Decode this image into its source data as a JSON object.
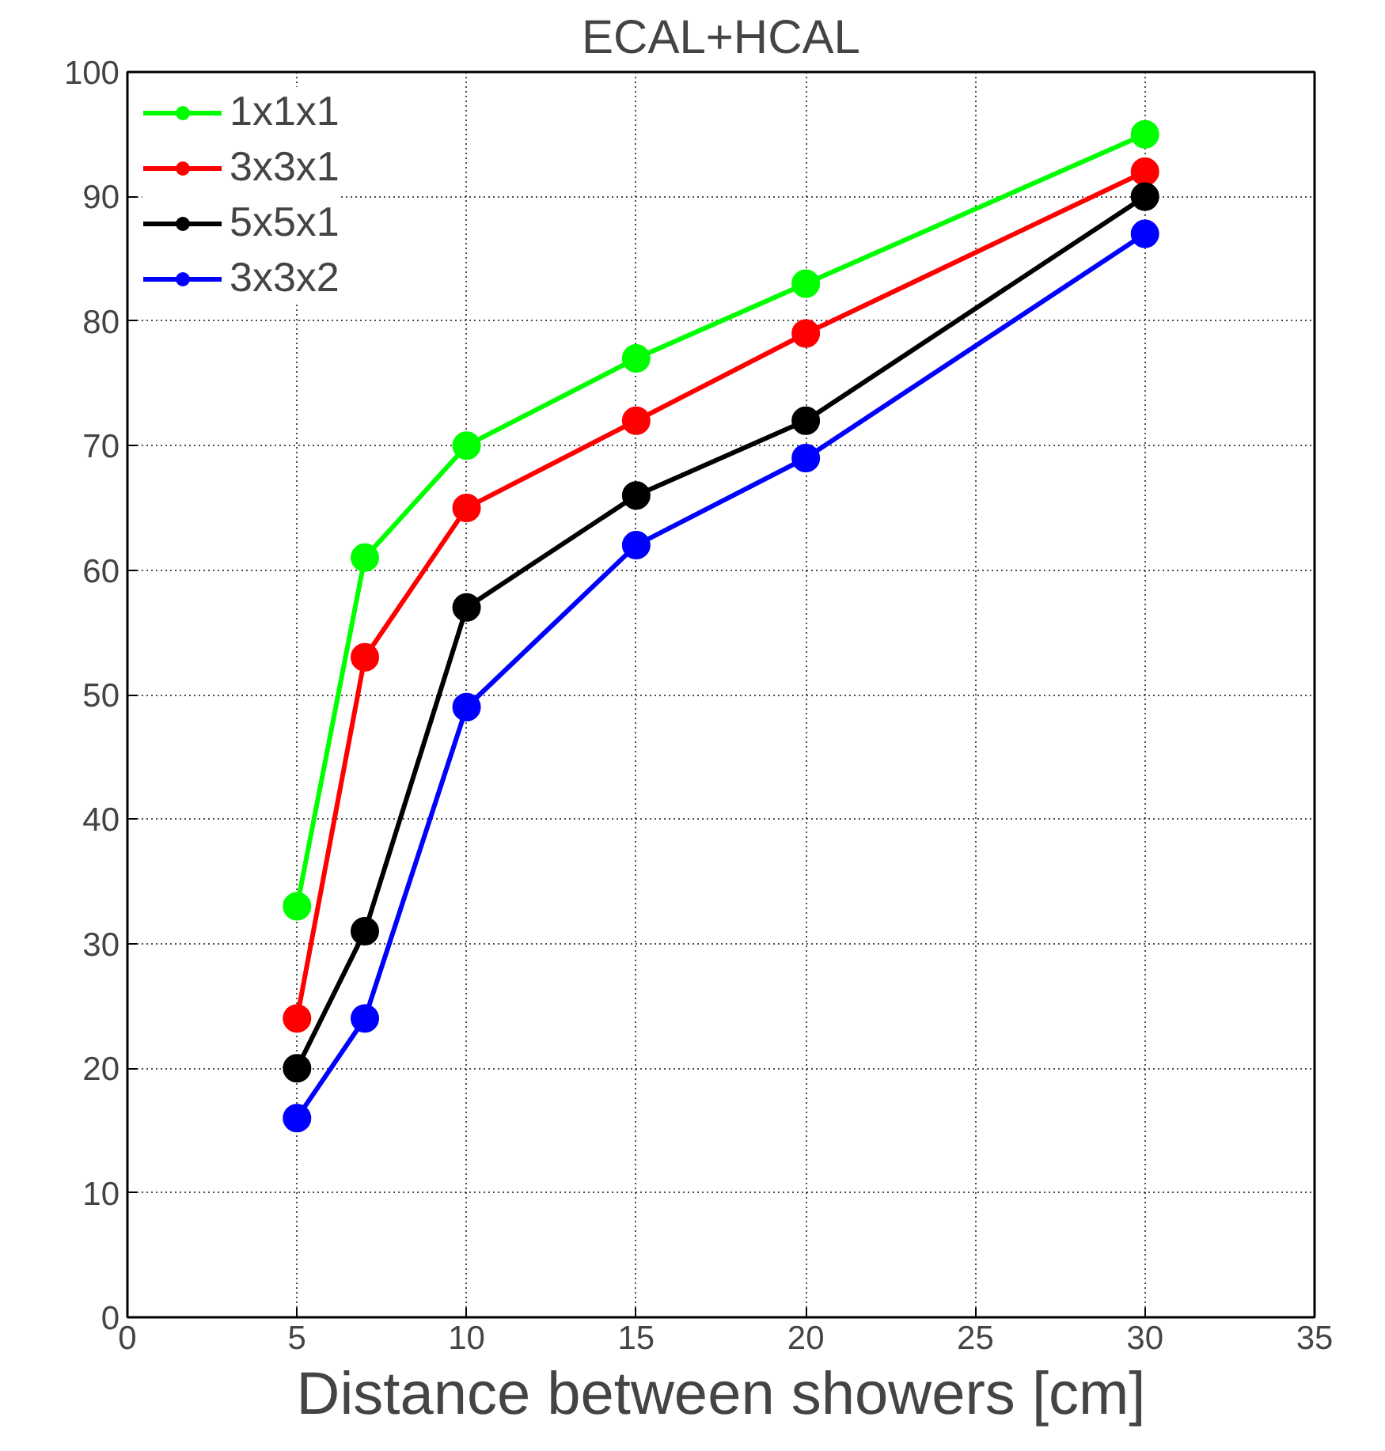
{
  "chart_data": {
    "type": "line",
    "title": "ECAL+HCAL",
    "xlabel": "Distance between showers [cm]",
    "x": [
      5,
      7,
      10,
      15,
      20,
      30
    ],
    "series": [
      {
        "name": "1x1x1",
        "color": "#00ff00",
        "values": [
          33,
          61,
          70,
          77,
          83,
          95
        ]
      },
      {
        "name": "3x3x1",
        "color": "#ff0000",
        "values": [
          24,
          53,
          65,
          72,
          79,
          92
        ]
      },
      {
        "name": "5x5x1",
        "color": "#000000",
        "values": [
          20,
          31,
          57,
          66,
          72,
          90
        ]
      },
      {
        "name": "3x3x2",
        "color": "#0000ff",
        "values": [
          16,
          24,
          49,
          62,
          69,
          87
        ]
      }
    ],
    "xlim": [
      0,
      35
    ],
    "xticks": [
      0,
      5,
      10,
      15,
      20,
      25,
      30,
      35
    ],
    "ylim": [
      0,
      100
    ],
    "yticks": [
      0,
      10,
      20,
      30,
      40,
      50,
      60,
      70,
      80,
      90,
      100
    ],
    "grid": true,
    "legend": "top left",
    "marker": "circle",
    "line_style": "solid"
  }
}
